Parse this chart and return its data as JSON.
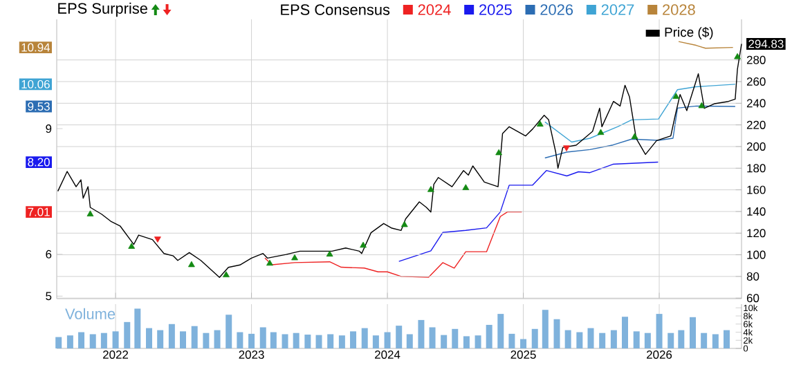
{
  "chart_data": [
    {
      "type": "line",
      "annotations": [
        "EPS Surprise"
      ],
      "legend_title": "EPS Consensus",
      "legend": "top",
      "grid": true,
      "tick_labels": "y",
      "xlim": [
        "2021-07-27",
        "2026-08-10"
      ],
      "xticks": [
        "2022",
        "2023",
        "2024",
        "2025",
        "2026"
      ],
      "ylim": [
        4.94,
        11.61
      ],
      "yticks": [
        5,
        6,
        7.01,
        {
          "value": 8.2,
          "label": "8.20"
        },
        9,
        9.53,
        10.06,
        10.94
      ],
      "y2lim": [
        59.5,
        317.5
      ],
      "y2ticks": [
        60,
        80,
        100,
        120,
        140,
        160,
        180,
        200,
        220,
        240,
        260,
        280,
        294.83
      ],
      "series": [
        {
          "name": "2024",
          "color": "#ee2222",
          "x": [
            "2023-02-06",
            "2023-02-25",
            "2023-04-27",
            "2023-07-30",
            "2023-08-30",
            "2023-10-31",
            "2023-12-07",
            "2024-01-01",
            "2024-02-07",
            "2024-04-21",
            "2024-05-29",
            "2024-06-29",
            "2024-07-30",
            "2024-09-24",
            "2024-10-31",
            "2024-11-19",
            "2024-12-28"
          ],
          "values": [
            5.91,
            5.75,
            5.8,
            5.82,
            5.69,
            5.67,
            5.58,
            5.58,
            5.47,
            5.45,
            5.8,
            5.67,
            6.06,
            6.06,
            6.9,
            7.01,
            7.01
          ]
        },
        {
          "name": "2025",
          "color": "#1a1aee",
          "x": [
            "2024-02-01",
            "2024-04-27",
            "2024-05-29",
            "2024-07-30",
            "2024-09-24",
            "2024-10-31",
            "2024-11-24",
            "2025-01-26",
            "2025-03-04",
            "2025-04-28",
            "2025-05-29",
            "2025-06-29",
            "2025-08-30",
            "2025-12-29"
          ],
          "values": [
            5.83,
            6.08,
            6.52,
            6.57,
            6.63,
            7.01,
            7.65,
            7.65,
            8.0,
            7.87,
            7.97,
            7.95,
            8.15,
            8.2
          ]
        },
        {
          "name": "2026",
          "color": "#2c6db3",
          "x": [
            "2025-02-28",
            "2025-04-28",
            "2025-06-29",
            "2025-08-30",
            "2025-10-19",
            "2025-12-30",
            "2026-02-07",
            "2026-02-19",
            "2026-04-10",
            "2026-07-24"
          ],
          "values": [
            8.3,
            8.44,
            8.5,
            8.61,
            8.75,
            8.72,
            8.77,
            9.49,
            9.54,
            9.53
          ]
        },
        {
          "name": "2027",
          "color": "#3fa4d4",
          "x": [
            "2025-02-28",
            "2025-05-11",
            "2025-06-29",
            "2025-09-12",
            "2025-10-19",
            "2025-12-30",
            "2026-02-19",
            "2026-04-10",
            "2026-07-24"
          ],
          "values": [
            9.16,
            8.68,
            8.77,
            9.05,
            9.21,
            9.23,
            9.93,
            10.0,
            10.06
          ]
        },
        {
          "name": "2028",
          "color": "#b8843a",
          "x": [
            "2026-02-22",
            "2026-04-10",
            "2026-05-05",
            "2026-07-18"
          ],
          "values": [
            11.08,
            10.99,
            10.92,
            10.94
          ]
        },
        {
          "name": "Price ($)",
          "color": "#000000",
          "axis": "y2",
          "x": [
            "2021-07-30",
            "2021-08-24",
            "2021-09-17",
            "2021-09-30",
            "2021-10-06",
            "2021-10-19",
            "2021-10-25",
            "2021-11-25",
            "2021-12-19",
            "2022-01-13",
            "2022-02-19",
            "2022-03-04",
            "2022-04-10",
            "2022-05-11",
            "2022-06-05",
            "2022-06-17",
            "2022-07-18",
            "2022-08-18",
            "2022-10-07",
            "2022-10-31",
            "2022-12-01",
            "2023-01-01",
            "2023-02-01",
            "2023-02-13",
            "2023-04-04",
            "2023-05-11",
            "2023-06-29",
            "2023-08-05",
            "2023-09-11",
            "2023-10-18",
            "2023-10-24",
            "2023-11-18",
            "2023-12-22",
            "2024-01-13",
            "2024-02-07",
            "2024-02-19",
            "2024-03-27",
            "2024-04-15",
            "2024-04-27",
            "2024-05-05",
            "2024-05-17",
            "2024-06-23",
            "2024-07-24",
            "2024-08-06",
            "2024-08-18",
            "2024-09-18",
            "2024-10-25",
            "2024-11-06",
            "2024-11-24",
            "2025-01-07",
            "2025-01-26",
            "2025-02-26",
            "2025-03-10",
            "2025-03-29",
            "2025-04-04",
            "2025-04-17",
            "2025-05-23",
            "2025-07-06",
            "2025-07-25",
            "2025-07-31",
            "2025-08-31",
            "2025-09-18",
            "2025-10-01",
            "2025-10-13",
            "2025-10-31",
            "2025-11-25",
            "2025-12-25",
            "2026-02-01",
            "2026-02-13",
            "2026-02-26",
            "2026-03-16",
            "2026-04-16",
            "2026-05-02",
            "2026-05-30",
            "2026-07-06",
            "2026-07-24",
            "2026-07-30",
            "2026-08-10"
          ],
          "values": [
            158.7,
            177.0,
            162.9,
            169.3,
            152.3,
            162.9,
            143.8,
            137.4,
            131.0,
            126.7,
            109.6,
            118.2,
            114.0,
            101.2,
            99.0,
            94.8,
            102.0,
            94.8,
            79.1,
            88.4,
            90.6,
            96.9,
            101.2,
            96.9,
            100.3,
            103.3,
            103.3,
            103.3,
            106.3,
            103.3,
            101.2,
            120.4,
            128.9,
            124.6,
            122.5,
            133.1,
            148.9,
            143.8,
            139.5,
            165.1,
            171.4,
            162.9,
            177.8,
            173.6,
            182.1,
            167.2,
            162.9,
            211.9,
            218.3,
            209.8,
            216.2,
            228.9,
            224.7,
            194.9,
            180.0,
            199.1,
            201.3,
            214.0,
            235.4,
            218.3,
            241.7,
            237.4,
            256.6,
            246.0,
            207.6,
            192.7,
            205.5,
            209.8,
            228.9,
            248.1,
            233.2,
            267.2,
            235.3,
            239.6,
            241.7,
            243.8,
            271.5,
            294.83
          ]
        },
        {
          "type": "scatter",
          "marker": "triangle",
          "color": "#148a14",
          "axis": "y2",
          "x": [
            "2021-10-25",
            "2022-02-13",
            "2022-07-24",
            "2022-10-25",
            "2023-02-19",
            "2023-04-27",
            "2023-07-30",
            "2023-10-28",
            "2024-02-16",
            "2024-04-27",
            "2024-07-30",
            "2024-10-27",
            "2025-02-15",
            "2025-07-28",
            "2025-10-27",
            "2026-02-15",
            "2026-04-25",
            "2026-07-30"
          ],
          "values": [
            137.4,
            107.5,
            90.6,
            81.2,
            91.9,
            96.9,
            100.3,
            108.5,
            127.6,
            160.0,
            161.7,
            194.0,
            220.4,
            212.7,
            208.9,
            246.0,
            237.4,
            282.7
          ]
        },
        {
          "type": "scatter",
          "marker": "triangle",
          "color": "#ee2222",
          "axis": "y2",
          "x": [
            "2022-04-24",
            "2025-04-27"
          ],
          "values": [
            114.9,
            199.1
          ]
        }
      ]
    },
    {
      "type": "bar",
      "title": "Volume",
      "grid": "x",
      "xlim": [
        "2021-07-27",
        "2026-08-10"
      ],
      "xticks": [
        "2022",
        "2023",
        "2024",
        "2025",
        "2026"
      ],
      "ylim": [
        0,
        10900
      ],
      "yticks": [
        0,
        {
          "value": 2000,
          "label": "2k"
        },
        {
          "value": 4000,
          "label": "4k"
        },
        {
          "value": 6000,
          "label": "6k"
        },
        {
          "value": 8000,
          "label": "8k"
        },
        {
          "value": 10000,
          "label": "10k"
        }
      ],
      "series": [
        {
          "color": "#7fb2dc",
          "x": [
            "2021-08",
            "2021-09",
            "2021-10",
            "2021-11",
            "2021-12",
            "2022-01",
            "2022-02",
            "2022-03",
            "2022-04",
            "2022-05",
            "2022-06",
            "2022-07",
            "2022-08",
            "2022-09",
            "2022-10",
            "2022-11",
            "2022-12",
            "2023-01",
            "2023-02",
            "2023-03",
            "2023-04",
            "2023-05",
            "2023-06",
            "2023-07",
            "2023-08",
            "2023-09",
            "2023-10",
            "2023-11",
            "2023-12",
            "2024-01",
            "2024-02",
            "2024-03",
            "2024-04",
            "2024-05",
            "2024-06",
            "2024-07",
            "2024-08",
            "2024-09",
            "2024-10",
            "2024-11",
            "2024-12",
            "2025-01",
            "2025-02",
            "2025-03",
            "2025-04",
            "2025-05",
            "2025-06",
            "2025-07",
            "2025-08",
            "2025-09",
            "2025-10",
            "2025-11",
            "2025-12",
            "2026-01",
            "2026-02",
            "2026-03",
            "2026-04",
            "2026-05",
            "2026-06",
            "2026-07"
          ],
          "values": [
            2800,
            3200,
            4000,
            3500,
            3800,
            4200,
            6500,
            9800,
            5000,
            4500,
            6000,
            4200,
            5500,
            3800,
            4500,
            8300,
            4000,
            3600,
            5200,
            4000,
            3500,
            3800,
            3400,
            3300,
            3500,
            3200,
            4200,
            5000,
            3200,
            4000,
            5600,
            3500,
            7000,
            5200,
            3300,
            4800,
            3000,
            3200,
            5800,
            8500,
            3600,
            2300,
            4800,
            9500,
            7200,
            4500,
            4000,
            5000,
            3800,
            4500,
            7800,
            4200,
            3800,
            8500,
            3800,
            4500,
            7700,
            3800,
            3500,
            4500
          ]
        }
      ]
    }
  ]
}
